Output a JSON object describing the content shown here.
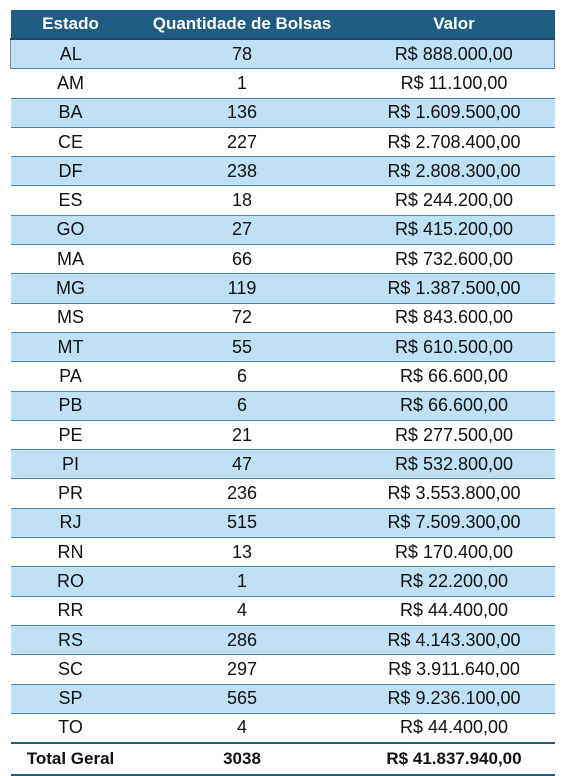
{
  "table": {
    "headers": [
      "Estado",
      "Quantidade de Bolsas",
      "Valor"
    ],
    "rows": [
      [
        "AL",
        "78",
        "R$ 888.000,00"
      ],
      [
        "AM",
        "1",
        "R$ 11.100,00"
      ],
      [
        "BA",
        "136",
        "R$ 1.609.500,00"
      ],
      [
        "CE",
        "227",
        "R$ 2.708.400,00"
      ],
      [
        "DF",
        "238",
        "R$ 2.808.300,00"
      ],
      [
        "ES",
        "18",
        "R$ 244.200,00"
      ],
      [
        "GO",
        "27",
        "R$ 415.200,00"
      ],
      [
        "MA",
        "66",
        "R$ 732.600,00"
      ],
      [
        "MG",
        "119",
        "R$ 1.387.500,00"
      ],
      [
        "MS",
        "72",
        "R$ 843.600,00"
      ],
      [
        "MT",
        "55",
        "R$ 610.500,00"
      ],
      [
        "PA",
        "6",
        "R$ 66.600,00"
      ],
      [
        "PB",
        "6",
        "R$ 66.600,00"
      ],
      [
        "PE",
        "21",
        "R$ 277.500,00"
      ],
      [
        "PI",
        "47",
        "R$ 532.800,00"
      ],
      [
        "PR",
        "236",
        "R$ 3.553.800,00"
      ],
      [
        "RJ",
        "515",
        "R$ 7.509.300,00"
      ],
      [
        "RN",
        "13",
        "R$ 170.400,00"
      ],
      [
        "RO",
        "1",
        "R$ 22.200,00"
      ],
      [
        "RR",
        "4",
        "R$ 44.400,00"
      ],
      [
        "RS",
        "286",
        "R$ 4.143.300,00"
      ],
      [
        "SC",
        "297",
        "R$ 3.911.640,00"
      ],
      [
        "SP",
        "565",
        "R$ 9.236.100,00"
      ],
      [
        "TO",
        "4",
        "R$ 44.400,00"
      ]
    ],
    "total": [
      "Total Geral",
      "3038",
      "R$ 41.837.940,00"
    ]
  },
  "colors": {
    "header_bg": "#1f5c82",
    "band_bg": "#bfe0f5",
    "row_bg": "#ffffff"
  }
}
